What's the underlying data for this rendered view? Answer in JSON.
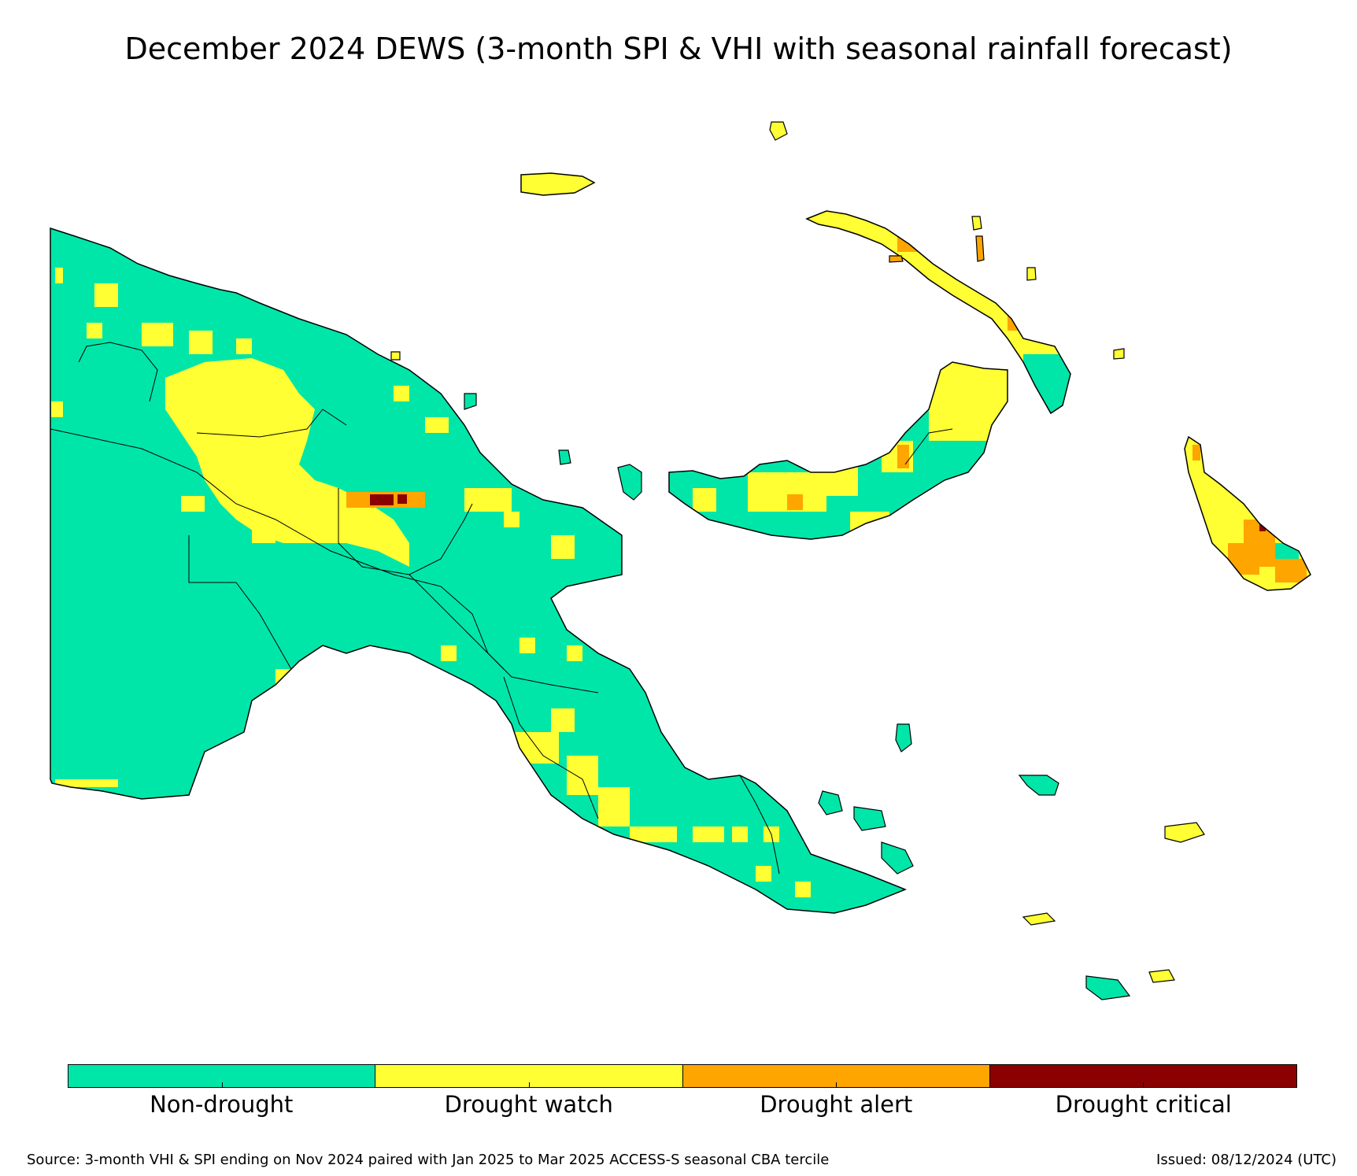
{
  "map": {
    "title": "December 2024 DEWS (3-month SPI & VHI with seasonal rainfall forecast)",
    "legend": {
      "categories": [
        {
          "label": "Non-drought",
          "color": "#00e6a9"
        },
        {
          "label": "Drought watch",
          "color": "#ffff33"
        },
        {
          "label": "Drought alert",
          "color": "#ffa500"
        },
        {
          "label": "Drought critical",
          "color": "#8b0000"
        }
      ]
    },
    "source_note": "Source: 3-month VHI & SPI ending on Nov 2024 paired with Jan 2025 to Mar 2025 ACCESS-S seasonal CBA tercile",
    "issued": "Issued: 08/12/2024 (UTC)"
  }
}
